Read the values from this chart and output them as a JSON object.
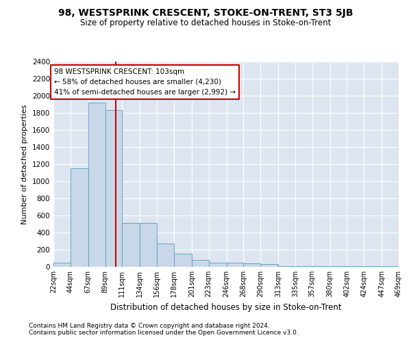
{
  "title": "98, WESTSPRINK CRESCENT, STOKE-ON-TRENT, ST3 5JB",
  "subtitle": "Size of property relative to detached houses in Stoke-on-Trent",
  "xlabel": "Distribution of detached houses by size in Stoke-on-Trent",
  "ylabel": "Number of detached properties",
  "footnote1": "Contains HM Land Registry data © Crown copyright and database right 2024.",
  "footnote2": "Contains public sector information licensed under the Open Government Licence v3.0.",
  "annotation_title": "98 WESTSPRINK CRESCENT: 103sqm",
  "annotation_line1": "← 58% of detached houses are smaller (4,230)",
  "annotation_line2": "41% of semi-detached houses are larger (2,992) →",
  "bar_color": "#c8d8e8",
  "bar_edge_color": "#5599bb",
  "vline_color": "#cc0000",
  "vline_x": 103,
  "background_color": "#dde6f0",
  "ylim": [
    0,
    2400
  ],
  "yticks": [
    0,
    200,
    400,
    600,
    800,
    1000,
    1200,
    1400,
    1600,
    1800,
    2000,
    2200,
    2400
  ],
  "bin_edges": [
    22,
    44,
    67,
    89,
    111,
    134,
    156,
    178,
    201,
    223,
    246,
    268,
    290,
    313,
    335,
    357,
    380,
    402,
    424,
    447,
    469
  ],
  "bar_heights": [
    50,
    1150,
    1920,
    1830,
    510,
    510,
    270,
    150,
    80,
    50,
    45,
    40,
    35,
    10,
    10,
    5,
    5,
    5,
    5,
    5
  ],
  "tick_labels": [
    "22sqm",
    "44sqm",
    "67sqm",
    "89sqm",
    "111sqm",
    "134sqm",
    "156sqm",
    "178sqm",
    "201sqm",
    "223sqm",
    "246sqm",
    "268sqm",
    "290sqm",
    "313sqm",
    "335sqm",
    "357sqm",
    "380sqm",
    "402sqm",
    "424sqm",
    "447sqm",
    "469sqm"
  ]
}
